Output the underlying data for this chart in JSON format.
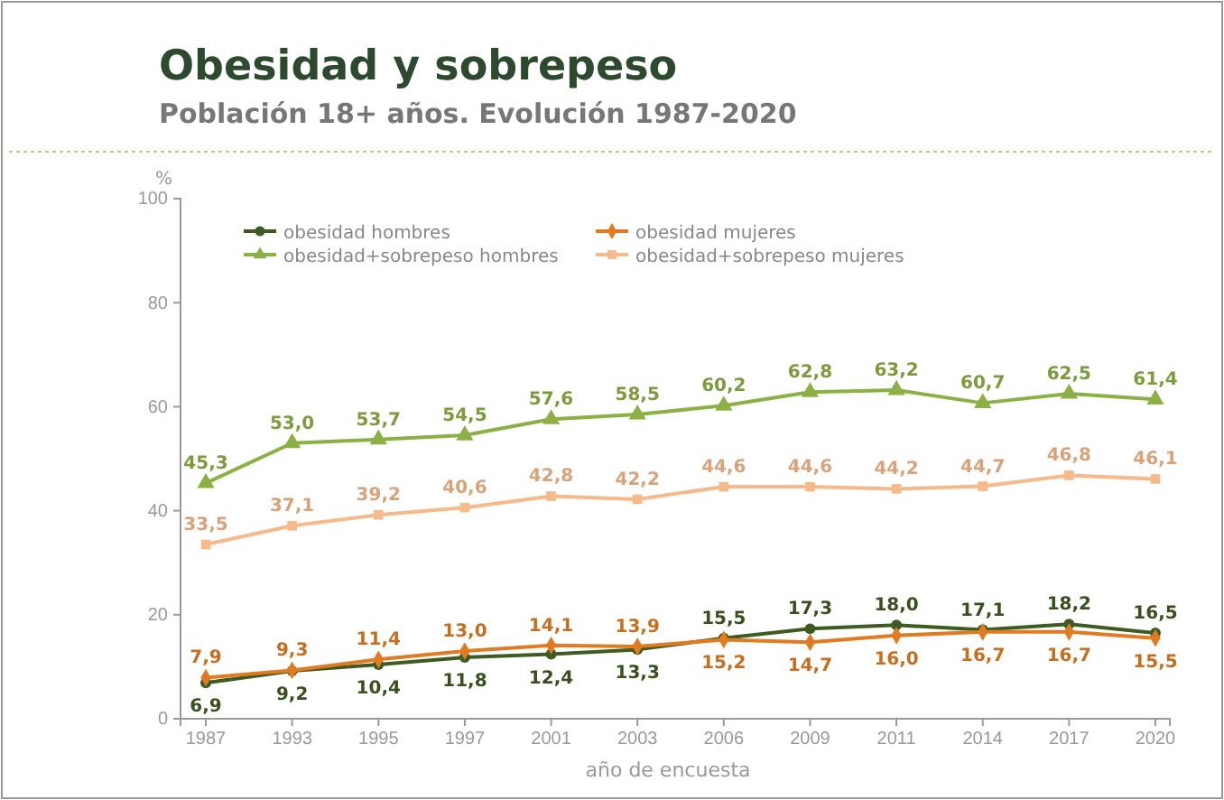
{
  "chart_data": {
    "type": "line",
    "title": "Obesidad y sobrepeso",
    "subtitle": "Población 18+ años. Evolución 1987-2020",
    "xlabel": "año de encuesta",
    "ylabel": "%",
    "categories": [
      "1987",
      "1993",
      "1995",
      "1997",
      "2001",
      "2003",
      "2006",
      "2009",
      "2011",
      "2014",
      "2017",
      "2020"
    ],
    "ylim": [
      0,
      100
    ],
    "yticks": [
      0,
      20,
      40,
      60,
      80,
      100
    ],
    "grid": false,
    "legend": "top left",
    "series": [
      {
        "name": "obesidad hombres",
        "color": "#3e5b22",
        "marker": "circle",
        "values": [
          6.9,
          9.2,
          10.4,
          11.8,
          12.4,
          13.3,
          15.5,
          17.3,
          18.0,
          17.1,
          18.2,
          16.5
        ],
        "value_labels": [
          "6,9",
          "9,2",
          "10,4",
          "11,8",
          "12,4",
          "13,3",
          "15,5",
          "17,3",
          "18,0",
          "17,1",
          "18,2",
          "16,5"
        ]
      },
      {
        "name": "obesidad mujeres",
        "color": "#e07b22",
        "marker": "diamond",
        "values": [
          7.9,
          9.3,
          11.4,
          13.0,
          14.1,
          13.9,
          15.2,
          14.7,
          16.0,
          16.7,
          16.7,
          15.5
        ],
        "value_labels": [
          "7,9",
          "9,3",
          "11,4",
          "13,0",
          "14,1",
          "13,9",
          "15,2",
          "14,7",
          "16,0",
          "16,7",
          "16,7",
          "15,5"
        ]
      },
      {
        "name": "obesidad+sobrepeso hombres",
        "color": "#8cb045",
        "marker": "triangle",
        "values": [
          45.3,
          53.0,
          53.7,
          54.5,
          57.6,
          58.5,
          60.2,
          62.8,
          63.2,
          60.7,
          62.5,
          61.4
        ],
        "value_labels": [
          "45,3",
          "53,0",
          "53,7",
          "54,5",
          "57,6",
          "58,5",
          "60,2",
          "62,8",
          "63,2",
          "60,7",
          "62,5",
          "61,4"
        ]
      },
      {
        "name": "obesidad+sobrepeso mujeres",
        "color": "#f5b98a",
        "marker": "square",
        "values": [
          33.5,
          37.1,
          39.2,
          40.6,
          42.8,
          42.2,
          44.6,
          44.6,
          44.2,
          44.7,
          46.8,
          46.1
        ],
        "value_labels": [
          "33,5",
          "37,1",
          "39,2",
          "40,6",
          "42,8",
          "42,2",
          "44,6",
          "44,6",
          "44,2",
          "44,7",
          "46,8",
          "46,1"
        ]
      }
    ]
  }
}
